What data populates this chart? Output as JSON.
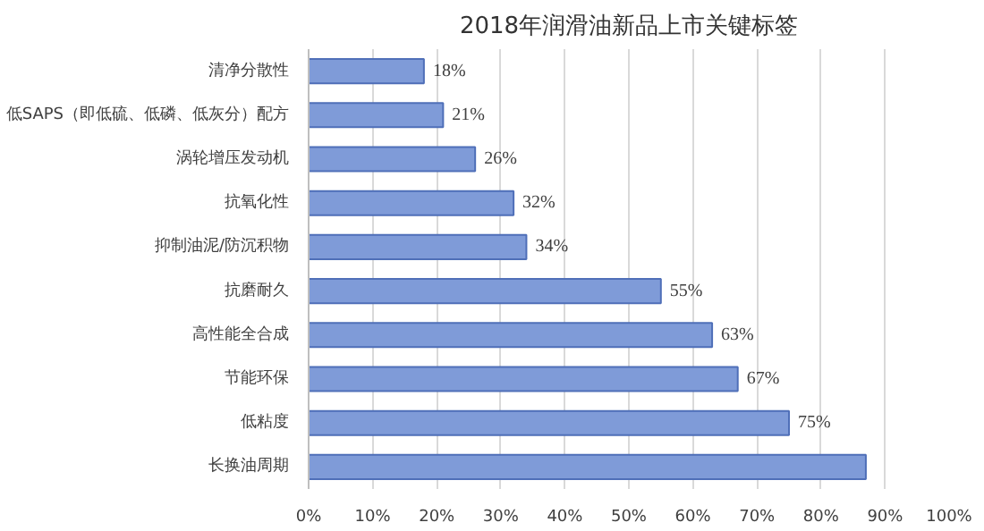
{
  "chart_data": {
    "type": "bar",
    "orientation": "horizontal",
    "title": "2018年润滑油新品上市关键标签",
    "categories": [
      "清净分散性",
      "低SAPS（即低硫、低磷、低灰分）配方",
      "涡轮增压发动机",
      "抗氧化性",
      "抑制油泥/防沉积物",
      "抗磨耐久",
      "高性能全合成",
      "节能环保",
      "低粘度",
      "长换油周期"
    ],
    "values": [
      18,
      21,
      26,
      32,
      34,
      55,
      63,
      67,
      75,
      87
    ],
    "value_labels": [
      "18%",
      "21%",
      "26%",
      "32%",
      "34%",
      "55%",
      "63%",
      "67%",
      "75%",
      null
    ],
    "color": "#7f9bd8",
    "xlim": [
      0,
      100
    ],
    "xticks": [
      {
        "value": 0,
        "label": "0%"
      },
      {
        "value": 10,
        "label": "10%"
      },
      {
        "value": 20,
        "label": "20%"
      },
      {
        "value": 30,
        "label": "30%"
      },
      {
        "value": 40,
        "label": "40%"
      },
      {
        "value": 50,
        "label": "50%"
      },
      {
        "value": 60,
        "label": "60%"
      },
      {
        "value": 70,
        "label": "70%"
      },
      {
        "value": 80,
        "label": "80%"
      },
      {
        "value": 90,
        "label": "90%"
      },
      {
        "value": 100,
        "label": "100%"
      }
    ],
    "grid": "x"
  }
}
